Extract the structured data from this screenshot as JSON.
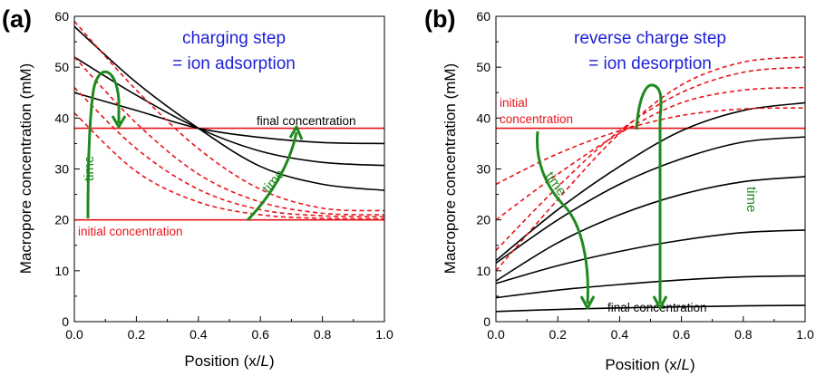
{
  "colors": {
    "black_curve": "#000000",
    "red_curve": "#e8141a",
    "green_arrow": "#1e8a1e",
    "title_blue": "#1f1fd8"
  },
  "chart_data": [
    {
      "type": "line",
      "panel_label": "(a)",
      "title_lines": [
        "charging step",
        "= ion adsorption"
      ],
      "xlabel_prefix": "Position (x/",
      "xlabel_italic": "L",
      "xlabel_suffix": ")",
      "ylabel": "Macropore concentration (mM)",
      "xlim": [
        0,
        1
      ],
      "ylim": [
        0,
        60
      ],
      "xticks": [
        "0.0",
        "0.2",
        "0.4",
        "0.6",
        "0.8",
        "1.0"
      ],
      "yticks": [
        "0",
        "10",
        "20",
        "30",
        "40",
        "50",
        "60"
      ],
      "grid": false,
      "horizontal_lines": [
        {
          "y": 38,
          "color": "red",
          "label": "final concentration",
          "label_color": "black"
        },
        {
          "y": 20,
          "color": "red",
          "label": "initial concentration",
          "label_color": "red"
        }
      ],
      "time_arrows": [
        "time",
        "time"
      ],
      "series": [
        {
          "style": "solid",
          "color": "black",
          "x": [
            0,
            0.2,
            0.4,
            0.6,
            0.8,
            1.0
          ],
          "y": [
            58,
            47,
            38,
            30.5,
            27,
            25.8
          ]
        },
        {
          "style": "solid",
          "color": "black",
          "x": [
            0,
            0.2,
            0.4,
            0.6,
            0.8,
            1.0
          ],
          "y": [
            52,
            44.5,
            38,
            33.5,
            31.3,
            30.7
          ]
        },
        {
          "style": "solid",
          "color": "black",
          "x": [
            0,
            0.2,
            0.4,
            0.6,
            0.8,
            1.0
          ],
          "y": [
            45,
            41.5,
            38,
            36.2,
            35.2,
            35.0
          ]
        },
        {
          "style": "dashed",
          "color": "red",
          "x": [
            0,
            0.2,
            0.4,
            0.6,
            0.8,
            1.0
          ],
          "y": [
            59,
            45.5,
            34,
            26,
            22.3,
            21.8
          ]
        },
        {
          "style": "dashed",
          "color": "red",
          "x": [
            0,
            0.2,
            0.4,
            0.6,
            0.8,
            1.0
          ],
          "y": [
            52,
            39,
            29,
            23.5,
            21.3,
            21
          ]
        },
        {
          "style": "dashed",
          "color": "red",
          "x": [
            0,
            0.2,
            0.4,
            0.6,
            0.8,
            1.0
          ],
          "y": [
            46,
            34,
            26,
            22,
            20.8,
            20.6
          ]
        },
        {
          "style": "dashed",
          "color": "red",
          "x": [
            0,
            0.2,
            0.4,
            0.6,
            0.8,
            1.0
          ],
          "y": [
            41,
            29.5,
            23.5,
            21,
            20.3,
            20.2
          ]
        }
      ]
    },
    {
      "type": "line",
      "panel_label": "(b)",
      "title_lines": [
        "reverse charge step",
        "= ion desorption"
      ],
      "xlabel_prefix": "Position (x/",
      "xlabel_italic": "L",
      "xlabel_suffix": ")",
      "ylabel": "Macropore concentration (mM)",
      "xlim": [
        0,
        1
      ],
      "ylim": [
        0,
        60
      ],
      "xticks": [
        "0.0",
        "0.2",
        "0.4",
        "0.6",
        "0.8",
        "1.0"
      ],
      "yticks": [
        "0",
        "10",
        "20",
        "30",
        "40",
        "50",
        "60"
      ],
      "grid": false,
      "horizontal_lines": [
        {
          "y": 38,
          "color": "red",
          "label": "initial\nconcentration",
          "label_color": "red"
        }
      ],
      "bottom_label": "final concentration",
      "time_arrows": [
        "time",
        "time"
      ],
      "series": [
        {
          "style": "solid",
          "color": "black",
          "x": [
            0,
            0.2,
            0.4,
            0.6,
            0.8,
            1.0
          ],
          "y": [
            12,
            22,
            30.5,
            37.5,
            41.5,
            43
          ]
        },
        {
          "style": "solid",
          "color": "black",
          "x": [
            0,
            0.2,
            0.4,
            0.6,
            0.8,
            1.0
          ],
          "y": [
            11.5,
            20,
            27,
            32,
            35.3,
            36.3
          ]
        },
        {
          "style": "solid",
          "color": "black",
          "x": [
            0,
            0.2,
            0.4,
            0.6,
            0.8,
            1.0
          ],
          "y": [
            8,
            15.5,
            21,
            25,
            27.5,
            28.5
          ]
        },
        {
          "style": "solid",
          "color": "black",
          "x": [
            0,
            0.2,
            0.4,
            0.6,
            0.8,
            1.0
          ],
          "y": [
            7.5,
            11,
            13.8,
            16,
            17.5,
            18
          ]
        },
        {
          "style": "solid",
          "color": "black",
          "x": [
            0,
            0.2,
            0.4,
            0.6,
            0.8,
            1.0
          ],
          "y": [
            4.7,
            6.2,
            7.3,
            8.2,
            8.8,
            9
          ]
        },
        {
          "style": "solid",
          "color": "black",
          "x": [
            0,
            0.2,
            0.4,
            0.6,
            0.8,
            1.0
          ],
          "y": [
            2,
            2.4,
            2.7,
            2.9,
            3.1,
            3.2
          ]
        },
        {
          "style": "dashed",
          "color": "red",
          "x": [
            0,
            0.2,
            0.4,
            0.6,
            0.8,
            1.0
          ],
          "y": [
            27,
            33,
            37.5,
            40.5,
            41.8,
            42
          ]
        },
        {
          "style": "dashed",
          "color": "red",
          "x": [
            0,
            0.2,
            0.4,
            0.6,
            0.8,
            1.0
          ],
          "y": [
            20,
            29,
            37,
            43,
            45.5,
            46
          ]
        },
        {
          "style": "dashed",
          "color": "red",
          "x": [
            0,
            0.2,
            0.4,
            0.6,
            0.8,
            1.0
          ],
          "y": [
            14,
            26.5,
            37.5,
            45,
            49,
            50
          ]
        },
        {
          "style": "dashed",
          "color": "red",
          "x": [
            0,
            0.2,
            0.4,
            0.6,
            0.8,
            1.0
          ],
          "y": [
            10,
            24,
            37,
            46.5,
            51,
            52
          ]
        }
      ]
    }
  ]
}
